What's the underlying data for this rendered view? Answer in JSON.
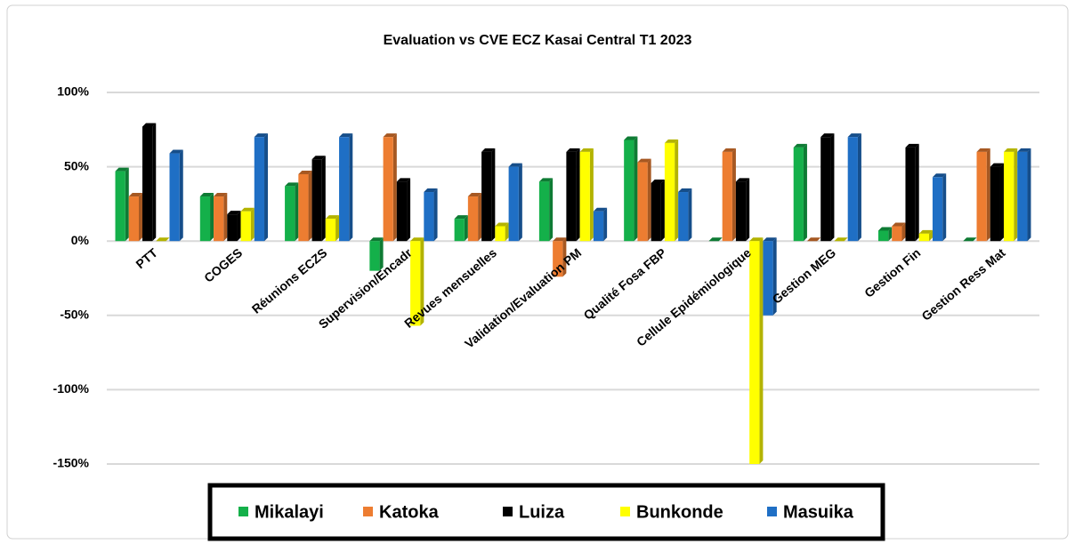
{
  "chart_data": {
    "type": "bar",
    "title": "Evaluation vs CVE ECZ Kasai Central T1 2023",
    "categories": [
      "PTT",
      "COGES",
      "Réunions ECZS",
      "Supervision/Encadr",
      "Revues mensuelles",
      "Validation/Evaluation PM",
      "Qualité Fosa  FBP",
      "Cellule Epidémiologique",
      "Gestion MEG",
      "Gestion Fin",
      "Gestion Ress Mat"
    ],
    "series": [
      {
        "name": "Mikalayi",
        "color": "#14b04a",
        "values": [
          47,
          30,
          37,
          -20,
          15,
          40,
          68,
          0,
          63,
          7,
          0
        ]
      },
      {
        "name": "Katoka",
        "color": "#ed7d31",
        "values": [
          30,
          30,
          45,
          70,
          30,
          -24,
          53,
          60,
          0,
          10,
          60
        ]
      },
      {
        "name": "Luiza",
        "color": "#000000",
        "values": [
          77,
          18,
          55,
          40,
          60,
          60,
          39,
          40,
          70,
          63,
          50
        ]
      },
      {
        "name": "Bunkonde",
        "color": "#ffff00",
        "values": [
          0,
          20,
          15,
          -57,
          10,
          60,
          66,
          -150,
          0,
          5,
          60
        ]
      },
      {
        "name": "Masuika",
        "color": "#1f6fc5",
        "values": [
          59,
          70,
          70,
          33,
          50,
          20,
          33,
          -50,
          70,
          43,
          60
        ]
      }
    ],
    "ylim": [
      -150,
      100
    ],
    "yticks": [
      {
        "value": -150,
        "label": "-150%"
      },
      {
        "value": -100,
        "label": "-100%"
      },
      {
        "value": -50,
        "label": "-50%"
      },
      {
        "value": 0,
        "label": "0%"
      },
      {
        "value": 50,
        "label": "50%"
      },
      {
        "value": 100,
        "label": "100%"
      }
    ],
    "grid": true,
    "legend": "bottom"
  }
}
